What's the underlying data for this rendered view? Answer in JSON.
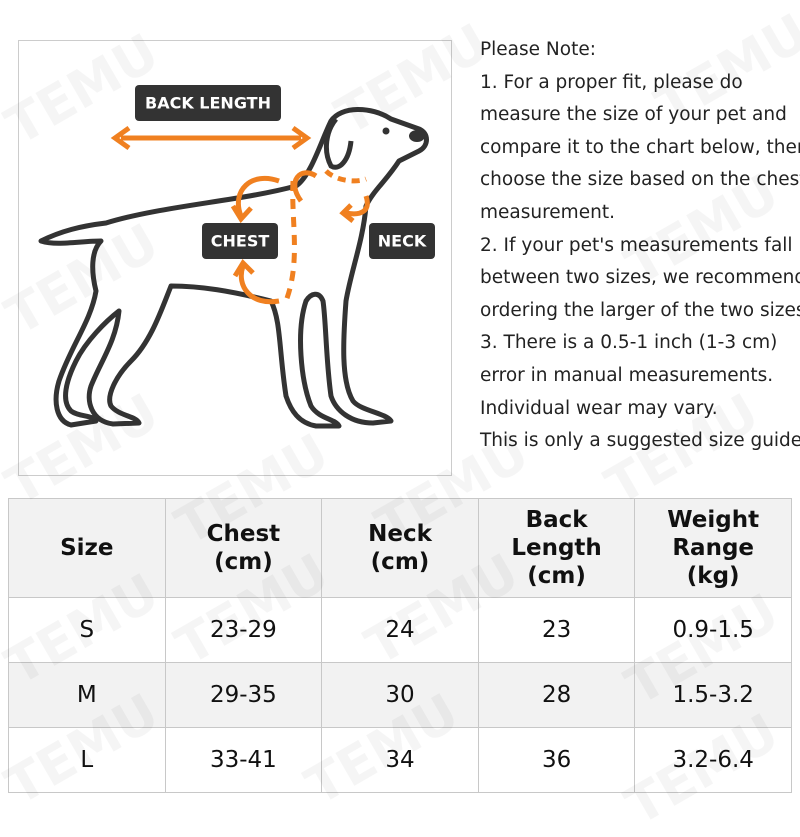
{
  "watermark": "TEMU",
  "diagram": {
    "back_length": "BACK LENGTH",
    "chest": "CHEST",
    "neck": "NECK"
  },
  "note": [
    "Please Note:",
    "1. For a proper fit, please do",
    "measure the size of your pet and",
    "compare it to the chart below, then",
    "choose the size based on the chest",
    "measurement.",
    "2. If your pet's measurements fall",
    "between two sizes, we recommend",
    "ordering the larger of the two sizes.",
    "3. There is a 0.5-1 inch (1-3 cm)",
    "error in manual measurements.",
    "Individual wear may vary.",
    "This is only a suggested size guide."
  ],
  "table": {
    "headers": [
      "Size",
      "Chest\n(cm)",
      "Neck\n(cm)",
      "Back\nLength\n(cm)",
      "Weight\nRange\n(kg)"
    ],
    "rows": [
      [
        "S",
        "23-29",
        "24",
        "23",
        "0.9-1.5"
      ],
      [
        "M",
        "29-35",
        "30",
        "28",
        "1.5-3.2"
      ],
      [
        "L",
        "33-41",
        "34",
        "36",
        "3.2-6.4"
      ]
    ]
  }
}
